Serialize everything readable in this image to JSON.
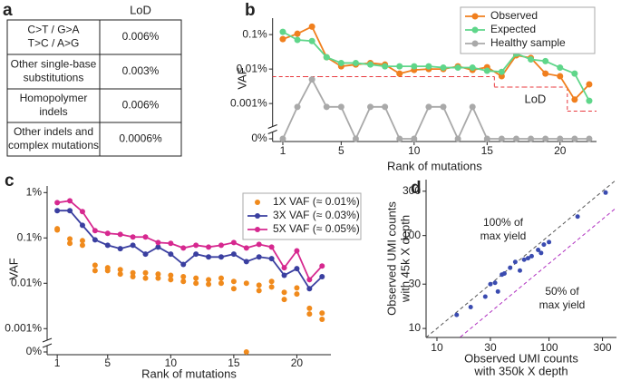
{
  "table": {
    "panel_label": "a",
    "column_header": "LoD",
    "rows": [
      {
        "type_lines": [
          "C>T / G>A",
          "T>C / A>G"
        ],
        "lod": "0.006%"
      },
      {
        "type_lines": [
          "Other single-base",
          "substitutions"
        ],
        "lod": "0.003%"
      },
      {
        "type_lines": [
          "Homopolymer",
          "indels"
        ],
        "lod": "0.006%"
      },
      {
        "type_lines": [
          "Other indels and",
          "complex mutations"
        ],
        "lod": "0.0006%"
      }
    ]
  },
  "chart_data": [
    {
      "type": "line",
      "panel_label": "b",
      "x_label": "Rank of mutations",
      "y_label": "VAF",
      "x": [
        1,
        2,
        3,
        4,
        5,
        6,
        7,
        8,
        9,
        10,
        11,
        12,
        13,
        14,
        15,
        16,
        17,
        18,
        19,
        20,
        21,
        22
      ],
      "xlim": [
        0.3,
        22.5
      ],
      "xticks": [
        1,
        5,
        10,
        15,
        20
      ],
      "log_y": true,
      "axis_break": true,
      "ylim": [
        0.0003,
        0.3
      ],
      "yticks": [
        {
          "value": 0,
          "label": "0%"
        },
        {
          "value": 0.001,
          "label": "0.001%"
        },
        {
          "value": 0.01,
          "label": "0.01%"
        },
        {
          "value": 0.1,
          "label": "0.1%"
        }
      ],
      "legend": "upper right",
      "series": [
        {
          "name": "Observed",
          "color": "#f07f1e",
          "values": [
            0.074,
            0.106,
            0.17,
            0.022,
            0.012,
            0.0135,
            0.015,
            0.0135,
            0.0074,
            0.0094,
            0.01,
            0.01,
            0.012,
            0.0094,
            0.0113,
            0.0062,
            0.025,
            0.021,
            0.0074,
            0.0062,
            0.0013,
            0.0036
          ]
        },
        {
          "name": "Expected",
          "color": "#5fd68a",
          "values": [
            0.12,
            0.07,
            0.065,
            0.022,
            0.015,
            0.015,
            0.0135,
            0.012,
            0.012,
            0.012,
            0.012,
            0.011,
            0.011,
            0.011,
            0.0089,
            0.0083,
            0.028,
            0.019,
            0.017,
            0.011,
            0.0074,
            0.0012
          ]
        },
        {
          "name": "Healthy sample",
          "color": "#a9a9a9",
          "values": [
            0,
            0.0008,
            0.005,
            0.0008,
            0.0008,
            0,
            0.0008,
            0.0008,
            0,
            0,
            0.0008,
            0.0008,
            0,
            0.0008,
            0,
            0,
            0,
            0,
            0,
            0,
            0,
            0
          ]
        }
      ],
      "threshold": {
        "name": "LoD",
        "color": "#e8383d",
        "values": [
          0.006,
          0.006,
          0.006,
          0.006,
          0.006,
          0.006,
          0.006,
          0.006,
          0.006,
          0.006,
          0.006,
          0.006,
          0.006,
          0.006,
          0.006,
          0.003,
          0.003,
          0.003,
          0.003,
          0.003,
          0.0006,
          0.0006
        ]
      }
    },
    {
      "type": "line",
      "panel_label": "c",
      "x_label": "Rank of mutations",
      "y_label": "VAF",
      "x": [
        1,
        2,
        3,
        4,
        5,
        6,
        7,
        8,
        9,
        10,
        11,
        12,
        13,
        14,
        15,
        16,
        17,
        18,
        19,
        20,
        21,
        22
      ],
      "xlim": [
        0.2,
        22.7
      ],
      "xticks": [
        1,
        5,
        10,
        15,
        20
      ],
      "log_y": true,
      "axis_break": true,
      "ylim": [
        0.0007,
        1.4
      ],
      "yticks": [
        {
          "value": 0,
          "label": "0%"
        },
        {
          "value": 0.001,
          "label": "0.001%"
        },
        {
          "value": 0.01,
          "label": "0.01%"
        },
        {
          "value": 0.1,
          "label": "0.1%"
        },
        {
          "value": 1,
          "label": "1%"
        }
      ],
      "legend": "upper right",
      "series": [
        {
          "name": "1X VAF (≈ 0.01%)",
          "color": "#f08a1c",
          "mode": "markers",
          "x": [
            1,
            1,
            2,
            2,
            3,
            3,
            4,
            4,
            5,
            5,
            6,
            6,
            7,
            7,
            8,
            8,
            9,
            9,
            10,
            10,
            11,
            11,
            12,
            12,
            13,
            13,
            14,
            14,
            15,
            15,
            16,
            16,
            17,
            17,
            18,
            18,
            19,
            19,
            20,
            20,
            21,
            21,
            22,
            22
          ],
          "values": [
            0.16,
            0.15,
            0.095,
            0.076,
            0.087,
            0.069,
            0.025,
            0.019,
            0.022,
            0.019,
            0.02,
            0.016,
            0.017,
            0.014,
            0.017,
            0.013,
            0.016,
            0.013,
            0.015,
            0.012,
            0.014,
            0.011,
            0.013,
            0.01,
            0.012,
            0.0095,
            0.013,
            0.01,
            0.011,
            0.0076,
            0.01,
            0,
            0.0091,
            0.0069,
            0.011,
            0.0083,
            0.0063,
            0.0044,
            0.0079,
            0.0058,
            0.0028,
            0.0021,
            0.0022,
            0.0016
          ]
        },
        {
          "name": "3X VAF (≈ 0.03%)",
          "color": "#3a3fa0",
          "values": [
            0.4,
            0.4,
            0.19,
            0.091,
            0.069,
            0.058,
            0.069,
            0.044,
            0.063,
            0.044,
            0.026,
            0.044,
            0.038,
            0.038,
            0.044,
            0.03,
            0.038,
            0.035,
            0.015,
            0.021,
            0.0076,
            0.014
          ]
        },
        {
          "name": "5X VAF (≈ 0.05%)",
          "color": "#d6288f",
          "values": [
            0.6,
            0.66,
            0.38,
            0.145,
            0.126,
            0.12,
            0.105,
            0.105,
            0.079,
            0.076,
            0.06,
            0.069,
            0.063,
            0.069,
            0.079,
            0.06,
            0.072,
            0.063,
            0.022,
            0.052,
            0.012,
            0.024
          ]
        }
      ]
    },
    {
      "type": "scatter",
      "panel_label": "d",
      "x_label_lines": [
        "Observed UMI counts",
        "with 350k X depth"
      ],
      "y_label_lines": [
        "Observed UMI counts",
        "with 45k X depth"
      ],
      "log_x": true,
      "log_y": true,
      "xlim": [
        8,
        400
      ],
      "ylim": [
        8,
        400
      ],
      "xticks": [
        10,
        30,
        100,
        300
      ],
      "yticks": [
        10,
        30,
        100,
        300
      ],
      "color": "#3a4bb0",
      "x": [
        15,
        20,
        27,
        30,
        33,
        35,
        38,
        40,
        45,
        50,
        55,
        60,
        65,
        70,
        80,
        85,
        90,
        100,
        180,
        320
      ],
      "values": [
        14,
        17,
        22,
        30,
        31,
        25,
        38,
        39,
        45,
        52,
        42,
        55,
        57,
        60,
        70,
        65,
        80,
        85,
        160,
        290
      ],
      "reference_lines": [
        {
          "label_lines": [
            "100% of",
            "max yield"
          ],
          "ratio": 1,
          "color": "#555555"
        },
        {
          "label_lines": [
            "50% of",
            "max yield"
          ],
          "ratio": 0.5,
          "color": "#b030c0"
        }
      ]
    }
  ]
}
